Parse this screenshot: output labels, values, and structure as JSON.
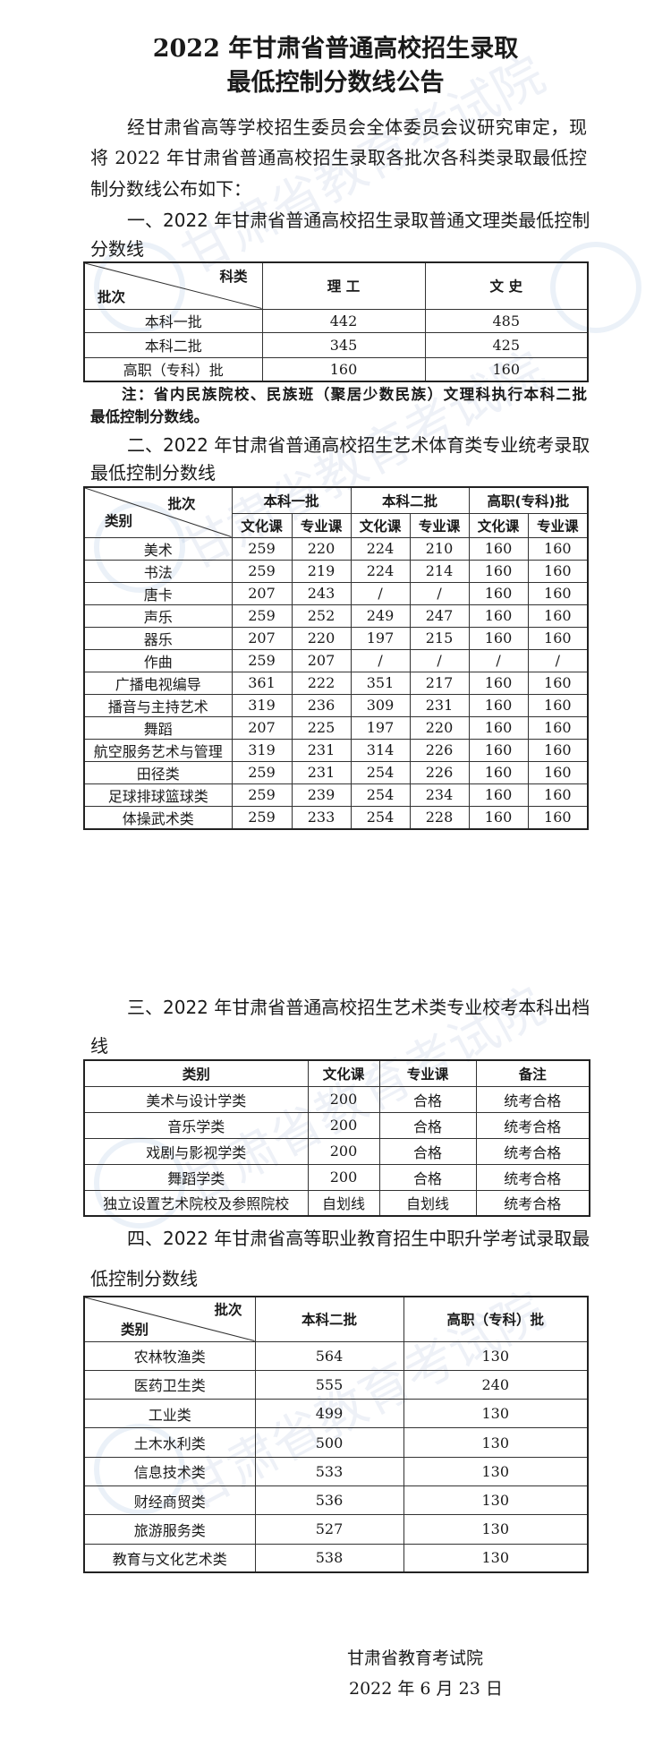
{
  "title": {
    "line1": "2022 年甘肃省普通高校招生录取",
    "line2": "最低控制分数线公告"
  },
  "intro": {
    "lines": [
      "经甘肃省高等学校招生委员会全体委员会议研究审定，现",
      "将 2022 年甘肃省普通高校招生录取各批次各科类录取最低控",
      "制分数线公布如下："
    ]
  },
  "section1": {
    "heading_lines": [
      "一、2022 年甘肃省普通高校招生录取普通文理类最低控制",
      "分数线"
    ],
    "corner_top": "科类",
    "corner_bottom": "批次",
    "columns": [
      "理 工",
      "文 史"
    ],
    "rows": [
      {
        "label": "本科一批",
        "values": [
          "442",
          "485"
        ]
      },
      {
        "label": "本科二批",
        "values": [
          "345",
          "425"
        ]
      },
      {
        "label": "高职（专科）批",
        "values": [
          "160",
          "160"
        ]
      }
    ],
    "note_lines": [
      "注：省内民族院校、民族班（聚居少数民族）文理科执行本科二批",
      "最低控制分数线。"
    ]
  },
  "section2": {
    "heading_lines": [
      "二、2022 年甘肃省普通高校招生艺术体育类专业统考录取",
      "最低控制分数线"
    ],
    "corner_top": "批次",
    "corner_bottom": "类别",
    "groups": [
      "本科一批",
      "本科二批",
      "高职(专科)批"
    ],
    "subcolumns": [
      "文化课",
      "专业课",
      "文化课",
      "专业课",
      "文化课",
      "专业课"
    ],
    "rows": [
      {
        "label": "美术",
        "values": [
          "259",
          "220",
          "224",
          "210",
          "160",
          "160"
        ]
      },
      {
        "label": "书法",
        "values": [
          "259",
          "219",
          "224",
          "214",
          "160",
          "160"
        ]
      },
      {
        "label": "唐卡",
        "values": [
          "207",
          "243",
          "/",
          "/",
          "160",
          "160"
        ]
      },
      {
        "label": "声乐",
        "values": [
          "259",
          "252",
          "249",
          "247",
          "160",
          "160"
        ]
      },
      {
        "label": "器乐",
        "values": [
          "207",
          "220",
          "197",
          "215",
          "160",
          "160"
        ]
      },
      {
        "label": "作曲",
        "values": [
          "259",
          "207",
          "/",
          "/",
          "/",
          "/"
        ]
      },
      {
        "label": "广播电视编导",
        "values": [
          "361",
          "222",
          "351",
          "217",
          "160",
          "160"
        ]
      },
      {
        "label": "播音与主持艺术",
        "values": [
          "319",
          "236",
          "309",
          "231",
          "160",
          "160"
        ]
      },
      {
        "label": "舞蹈",
        "values": [
          "207",
          "225",
          "197",
          "220",
          "160",
          "160"
        ]
      },
      {
        "label": "航空服务艺术与管理",
        "values": [
          "319",
          "231",
          "314",
          "226",
          "160",
          "160"
        ]
      },
      {
        "label": "田径类",
        "values": [
          "259",
          "231",
          "254",
          "226",
          "160",
          "160"
        ]
      },
      {
        "label": "足球排球篮球类",
        "values": [
          "259",
          "239",
          "254",
          "234",
          "160",
          "160"
        ]
      },
      {
        "label": "体操武术类",
        "values": [
          "259",
          "233",
          "254",
          "228",
          "160",
          "160"
        ]
      }
    ]
  },
  "section3": {
    "heading_lines": [
      "三、2022 年甘肃省普通高校招生艺术类专业校考本科出档",
      "线"
    ],
    "columns": [
      "类别",
      "文化课",
      "专业课",
      "备注"
    ],
    "rows": [
      {
        "label": "美术与设计学类",
        "values": [
          "200",
          "合格",
          "统考合格"
        ]
      },
      {
        "label": "音乐学类",
        "values": [
          "200",
          "合格",
          "统考合格"
        ]
      },
      {
        "label": "戏剧与影视学类",
        "values": [
          "200",
          "合格",
          "统考合格"
        ]
      },
      {
        "label": "舞蹈学类",
        "values": [
          "200",
          "合格",
          "统考合格"
        ]
      },
      {
        "label": "独立设置艺术院校及参照院校",
        "values": [
          "自划线",
          "自划线",
          "统考合格"
        ]
      }
    ]
  },
  "section4": {
    "heading_lines": [
      "四、2022 年甘肃省高等职业教育招生中职升学考试录取最",
      "低控制分数线"
    ],
    "corner_top": "批次",
    "corner_bottom": "类别",
    "columns": [
      "本科二批",
      "高职（专科）批"
    ],
    "rows": [
      {
        "label": "农林牧渔类",
        "values": [
          "564",
          "130"
        ]
      },
      {
        "label": "医药卫生类",
        "values": [
          "555",
          "240"
        ]
      },
      {
        "label": "工业类",
        "values": [
          "499",
          "130"
        ]
      },
      {
        "label": "土木水利类",
        "values": [
          "500",
          "130"
        ]
      },
      {
        "label": "信息技术类",
        "values": [
          "533",
          "130"
        ]
      },
      {
        "label": "财经商贸类",
        "values": [
          "536",
          "130"
        ]
      },
      {
        "label": "旅游服务类",
        "values": [
          "527",
          "130"
        ]
      },
      {
        "label": "教育与文化艺术类",
        "values": [
          "538",
          "130"
        ]
      }
    ]
  },
  "signature": {
    "org": "甘肃省教育考试院",
    "date": "2022 年 6 月 23 日"
  },
  "watermark": {
    "text": "甘肃省教育考试院",
    "color": "#7896be"
  }
}
